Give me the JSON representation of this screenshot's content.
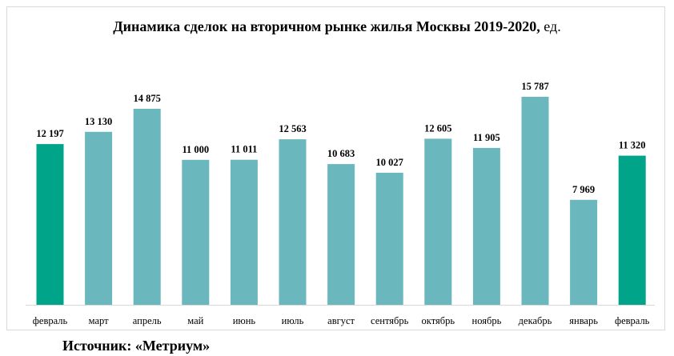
{
  "chart_data": {
    "type": "bar",
    "title": "Динамика сделок на вторичном рынке жилья Москвы 2019-2020,",
    "title_unit": "ед.",
    "categories": [
      "февраль",
      "март",
      "апрель",
      "май",
      "июнь",
      "июль",
      "август",
      "сентябрь",
      "октябрь",
      "ноябрь",
      "декабрь",
      "январь",
      "февраль"
    ],
    "values": [
      12197,
      13130,
      14875,
      11000,
      11011,
      12563,
      10683,
      10027,
      12605,
      11905,
      15787,
      7969,
      11320
    ],
    "value_labels": [
      "12 197",
      "13 130",
      "14 875",
      "11 000",
      "11 011",
      "12 563",
      "10 683",
      "10 027",
      "12 605",
      "11 905",
      "15 787",
      "7 969",
      "11 320"
    ],
    "highlighted": [
      true,
      false,
      false,
      false,
      false,
      false,
      false,
      false,
      false,
      false,
      false,
      false,
      true
    ],
    "colors": {
      "highlight": "#00a488",
      "default": "#6ab7bd",
      "axis": "#d9d9d9"
    },
    "ylim": [
      0,
      17000
    ],
    "grid": false,
    "legend": "none",
    "xlabel": "",
    "ylabel": ""
  },
  "source": "Источник: «Метриум»"
}
